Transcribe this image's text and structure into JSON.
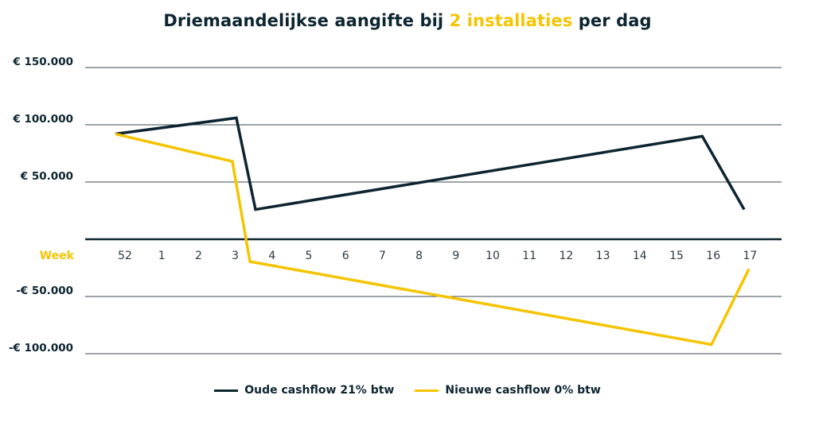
{
  "chart_data": {
    "type": "line",
    "title": {
      "before": "Driemaandelijkse aangifte bij ",
      "highlight": "2 installaties",
      "after": " per dag"
    },
    "xlabel": "Week",
    "categories": [
      "52",
      "1",
      "2",
      "3",
      "4",
      "5",
      "6",
      "7",
      "8",
      "9",
      "10",
      "11",
      "12",
      "13",
      "14",
      "15",
      "16",
      "17"
    ],
    "y_ticks": [
      {
        "value": 150000,
        "label": "€ 150.000"
      },
      {
        "value": 100000,
        "label": "€ 100.000"
      },
      {
        "value": 50000,
        "label": "€ 50.000"
      },
      {
        "value": 0,
        "label": ""
      },
      {
        "value": -50000,
        "label": "-€ 50.000"
      },
      {
        "value": -100000,
        "label": "-€ 100.000"
      }
    ],
    "ylim": [
      -100000,
      150000
    ],
    "grid": true,
    "legend_position": "bottom",
    "series": [
      {
        "name": "Oude cashflow 21% btw",
        "color": "#0d2530",
        "points": [
          {
            "x": -0.26,
            "y": 92000
          },
          {
            "x": 3.03,
            "y": 106000
          },
          {
            "x": 3.55,
            "y": 26000
          },
          {
            "x": 15.7,
            "y": 90000
          },
          {
            "x": 16.84,
            "y": 26000
          }
        ]
      },
      {
        "name": "Nieuwe cashflow 0% btw",
        "color": "#f5c400",
        "points": [
          {
            "x": -0.26,
            "y": 92000
          },
          {
            "x": 2.92,
            "y": 68000
          },
          {
            "x": 3.4,
            "y": -19500
          },
          {
            "x": 15.95,
            "y": -92000
          },
          {
            "x": 16.97,
            "y": -26000
          }
        ]
      }
    ]
  }
}
